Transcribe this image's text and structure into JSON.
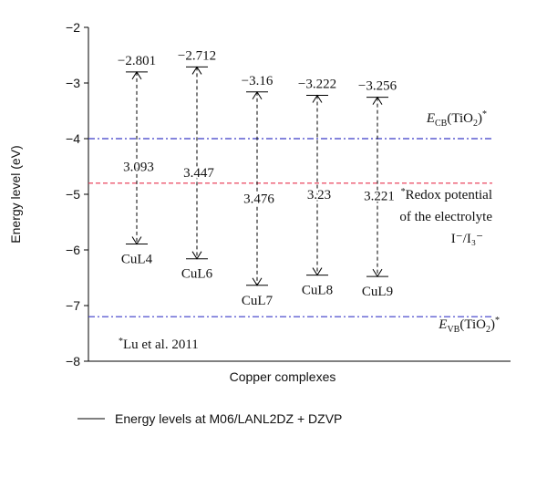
{
  "chart_data": {
    "type": "energy-level",
    "y_label": "Energy level (eV)",
    "x_label": "Copper complexes",
    "ylim": [
      -8,
      -2
    ],
    "yticks": [
      {
        "value": -2,
        "label": "−2"
      },
      {
        "value": -3,
        "label": "−3"
      },
      {
        "value": -4,
        "label": "−4"
      },
      {
        "value": -5,
        "label": "−5"
      },
      {
        "value": -6,
        "label": "−6"
      },
      {
        "value": -7,
        "label": "−7"
      },
      {
        "value": -8,
        "label": "−8"
      }
    ],
    "categories": [
      "CuL4",
      "CuL6",
      "CuL7",
      "CuL8",
      "CuL9"
    ],
    "series": [
      {
        "name": "Energy levels at M06/LANL2DZ + DZVP",
        "color": "#000000",
        "values": [
          -2.801,
          -2.712,
          -3.16,
          -3.222,
          -3.256
        ],
        "value_labels": [
          "−2.801",
          "−2.712",
          "−3.16",
          "−3.222",
          "−3.256"
        ],
        "lower_values": [
          -5.894,
          -6.159,
          -6.636,
          -6.452,
          -6.477
        ],
        "gaps": [
          3.093,
          3.447,
          3.476,
          3.23,
          3.221
        ]
      }
    ],
    "reference_lines": [
      {
        "value": -4,
        "color": "#3a3ac8",
        "dash": "dashdot",
        "label": [
          "E",
          "CB",
          "(TiO",
          "2",
          ")",
          "*"
        ]
      },
      {
        "value": -4.8,
        "color": "#e8304f",
        "dash": "dashed",
        "label": [
          "*",
          "Redox potential",
          "of the electrolyte",
          "I⁻/I₃⁻"
        ]
      },
      {
        "value": -7.2,
        "color": "#3a3ac8",
        "dash": "dashdot",
        "label": [
          "E",
          "VB",
          "(TiO",
          "2",
          ")",
          "*"
        ]
      }
    ],
    "note": [
      "*",
      "Lu et al. 2011"
    ]
  }
}
